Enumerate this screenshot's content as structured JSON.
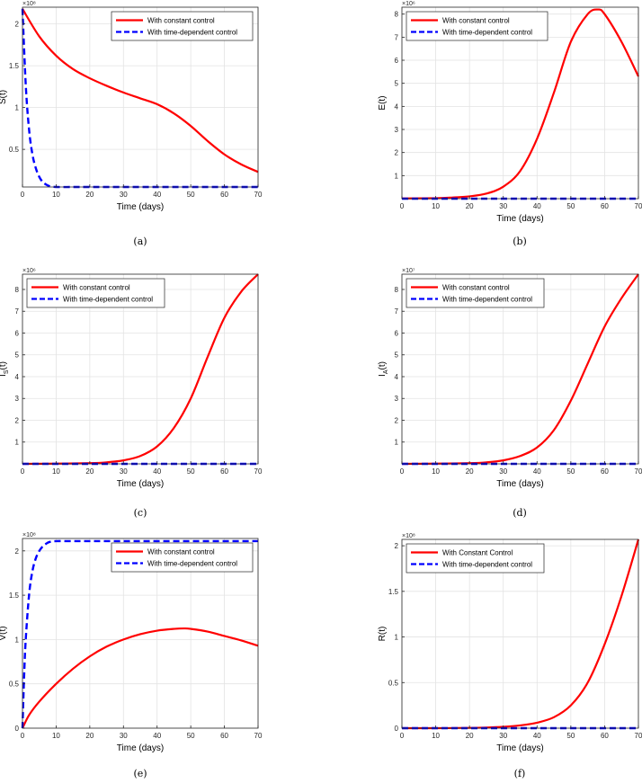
{
  "figure": {
    "panels": [
      {
        "id": "a",
        "caption": "(a)",
        "chart_data": {
          "type": "line",
          "xlabel": "Time (days)",
          "ylabel": "S(t)",
          "exponent_label": "×10⁸",
          "xlim": [
            0,
            70
          ],
          "ylim": [
            0.05,
            2.2
          ],
          "xticks": [
            0,
            10,
            20,
            30,
            40,
            50,
            60,
            70
          ],
          "yticks": [
            0.5,
            1,
            1.5,
            2
          ],
          "grid": true,
          "legend": {
            "location": "top-right"
          },
          "series": [
            {
              "name": "With constant  control",
              "color": "#ff0000",
              "style": "solid",
              "x": [
                0,
                5,
                10,
                15,
                20,
                25,
                30,
                35,
                40,
                45,
                50,
                55,
                60,
                65,
                70
              ],
              "y": [
                2.18,
                1.85,
                1.62,
                1.46,
                1.35,
                1.26,
                1.18,
                1.11,
                1.04,
                0.93,
                0.78,
                0.6,
                0.44,
                0.32,
                0.23
              ]
            },
            {
              "name": "With time-dependent  control",
              "color": "#0000ff",
              "style": "dashed",
              "x": [
                0,
                1,
                2,
                3,
                4,
                5,
                6,
                7,
                8,
                10,
                15,
                20,
                30,
                40,
                50,
                60,
                70
              ],
              "y": [
                2.18,
                1.25,
                0.72,
                0.43,
                0.27,
                0.17,
                0.11,
                0.08,
                0.06,
                0.05,
                0.05,
                0.05,
                0.05,
                0.05,
                0.05,
                0.05,
                0.05
              ]
            }
          ]
        }
      },
      {
        "id": "b",
        "caption": "(b)",
        "chart_data": {
          "type": "line",
          "xlabel": "Time (days)",
          "ylabel": "E(t)",
          "exponent_label": "×10⁶",
          "xlim": [
            0,
            70
          ],
          "ylim": [
            0,
            8.3
          ],
          "xticks": [
            0,
            10,
            20,
            30,
            40,
            50,
            60,
            70
          ],
          "yticks": [
            1,
            2,
            3,
            4,
            5,
            6,
            7,
            8
          ],
          "grid": true,
          "legend": {
            "location": "top-left"
          },
          "series": [
            {
              "name": "With constant  control",
              "color": "#ff0000",
              "style": "solid",
              "x": [
                0,
                10,
                15,
                20,
                25,
                30,
                35,
                40,
                45,
                50,
                55,
                58,
                60,
                65,
                70
              ],
              "y": [
                0.01,
                0.02,
                0.05,
                0.1,
                0.22,
                0.52,
                1.2,
                2.6,
                4.6,
                6.8,
                8.0,
                8.2,
                8.0,
                6.8,
                5.3
              ]
            },
            {
              "name": "With time-dependent  control",
              "color": "#0000ff",
              "style": "dashed",
              "x": [
                0,
                70
              ],
              "y": [
                0,
                0
              ]
            }
          ]
        }
      },
      {
        "id": "c",
        "caption": "(c)",
        "chart_data": {
          "type": "line",
          "xlabel": "Time (days)",
          "ylabel": "I_S(t)",
          "exponent_label": "×10⁶",
          "xlim": [
            0,
            70
          ],
          "ylim": [
            0,
            8.7
          ],
          "xticks": [
            0,
            10,
            20,
            30,
            40,
            50,
            60,
            70
          ],
          "yticks": [
            1,
            2,
            3,
            4,
            5,
            6,
            7,
            8
          ],
          "grid": true,
          "legend": {
            "location": "top-left"
          },
          "series": [
            {
              "name": "With constant control",
              "color": "#ff0000",
              "style": "solid",
              "x": [
                0,
                10,
                20,
                25,
                30,
                35,
                40,
                45,
                50,
                55,
                60,
                65,
                70
              ],
              "y": [
                0.0,
                0.01,
                0.03,
                0.07,
                0.16,
                0.36,
                0.8,
                1.65,
                3.0,
                4.9,
                6.7,
                7.9,
                8.7
              ]
            },
            {
              "name": "With time-dependent control",
              "color": "#0000ff",
              "style": "dashed",
              "x": [
                0,
                70
              ],
              "y": [
                0,
                0
              ]
            }
          ]
        }
      },
      {
        "id": "d",
        "caption": "(d)",
        "chart_data": {
          "type": "line",
          "xlabel": "Time (days)",
          "ylabel": "I_A(t)",
          "exponent_label": "×10⁷",
          "xlim": [
            0,
            70
          ],
          "ylim": [
            0,
            8.7
          ],
          "xticks": [
            0,
            10,
            20,
            30,
            40,
            50,
            60,
            70
          ],
          "yticks": [
            1,
            2,
            3,
            4,
            5,
            6,
            7,
            8
          ],
          "grid": true,
          "legend": {
            "location": "top-left"
          },
          "series": [
            {
              "name": "With constant control",
              "color": "#ff0000",
              "style": "solid",
              "x": [
                0,
                10,
                20,
                25,
                30,
                35,
                40,
                45,
                50,
                55,
                60,
                65,
                70
              ],
              "y": [
                0.0,
                0.01,
                0.03,
                0.07,
                0.16,
                0.36,
                0.75,
                1.55,
                2.9,
                4.6,
                6.3,
                7.6,
                8.7
              ]
            },
            {
              "name": "With time-dependent control",
              "color": "#0000ff",
              "style": "dashed",
              "x": [
                0,
                70
              ],
              "y": [
                0,
                0
              ]
            }
          ]
        }
      },
      {
        "id": "e",
        "caption": "(e)",
        "chart_data": {
          "type": "line",
          "xlabel": "Time (days)",
          "ylabel": "V(t)",
          "exponent_label": "×10⁸",
          "xlim": [
            0,
            70
          ],
          "ylim": [
            0,
            2.14
          ],
          "xticks": [
            0,
            10,
            20,
            30,
            40,
            50,
            60,
            70
          ],
          "yticks": [
            0,
            0.5,
            1,
            1.5,
            2
          ],
          "grid": true,
          "legend": {
            "location": "top-right"
          },
          "series": [
            {
              "name": "With constant control",
              "color": "#ff0000",
              "style": "solid",
              "x": [
                0,
                2,
                5,
                10,
                15,
                20,
                25,
                30,
                35,
                40,
                45,
                48,
                50,
                55,
                60,
                65,
                70
              ],
              "y": [
                0.0,
                0.15,
                0.3,
                0.5,
                0.67,
                0.81,
                0.92,
                1.0,
                1.06,
                1.1,
                1.12,
                1.125,
                1.12,
                1.09,
                1.04,
                0.99,
                0.93
              ]
            },
            {
              "name": "With time-dependent  control",
              "color": "#0000ff",
              "style": "dashed",
              "x": [
                0,
                0.5,
                1,
                2,
                3,
                4,
                5,
                6,
                7,
                8,
                10,
                15,
                20,
                30,
                40,
                50,
                60,
                70
              ],
              "y": [
                0.0,
                0.6,
                1.02,
                1.52,
                1.78,
                1.92,
                2.0,
                2.05,
                2.08,
                2.1,
                2.11,
                2.11,
                2.11,
                2.11,
                2.11,
                2.11,
                2.11,
                2.11
              ]
            }
          ]
        }
      },
      {
        "id": "f",
        "caption": "(f)",
        "chart_data": {
          "type": "line",
          "xlabel": "Time (days)",
          "ylabel": "R(t)",
          "exponent_label": "×10⁸",
          "xlim": [
            0,
            70
          ],
          "ylim": [
            0,
            2.07
          ],
          "xticks": [
            0,
            10,
            20,
            30,
            40,
            50,
            60,
            70
          ],
          "yticks": [
            0,
            0.5,
            1,
            1.5,
            2
          ],
          "grid": true,
          "legend": {
            "location": "top-left"
          },
          "series": [
            {
              "name": "With Constant Control",
              "color": "#ff0000",
              "style": "solid",
              "x": [
                0,
                10,
                20,
                25,
                30,
                35,
                40,
                45,
                50,
                55,
                60,
                65,
                70
              ],
              "y": [
                0.0,
                0.0,
                0.003,
                0.007,
                0.015,
                0.03,
                0.06,
                0.12,
                0.25,
                0.5,
                0.92,
                1.45,
                2.07
              ]
            },
            {
              "name": "With time-dependent control",
              "color": "#0000ff",
              "style": "dashed",
              "x": [
                0,
                70
              ],
              "y": [
                0,
                0
              ]
            }
          ]
        }
      }
    ]
  }
}
